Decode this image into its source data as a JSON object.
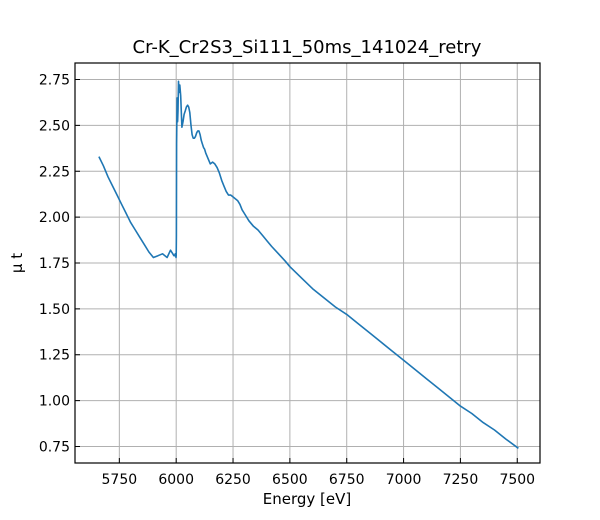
{
  "chart_data": {
    "type": "line",
    "title": "Cr-K_Cr2S3_Si111_50ms_141024_retry",
    "xlabel": "Energy [eV]",
    "ylabel": "μ t",
    "xlim": [
      5555,
      7600
    ],
    "ylim": [
      0.66,
      2.84
    ],
    "xticks": [
      5750,
      6000,
      6250,
      6500,
      6750,
      7000,
      7250,
      7500
    ],
    "yticks": [
      0.75,
      1.0,
      1.25,
      1.5,
      1.75,
      2.0,
      2.25,
      2.5,
      2.75
    ],
    "ytick_labels": [
      "0.75",
      "1.00",
      "1.25",
      "1.50",
      "1.75",
      "2.00",
      "2.25",
      "2.50",
      "2.75"
    ],
    "grid": true,
    "line_color": "#1f77b4",
    "series": [
      {
        "x": [
          5660,
          5680,
          5700,
          5720,
          5740,
          5760,
          5780,
          5800,
          5820,
          5840,
          5860,
          5880,
          5900,
          5920,
          5940,
          5960,
          5975,
          5985,
          5990,
          5993,
          5996,
          5999,
          6000,
          6001,
          6002,
          6004,
          6006,
          6008,
          6010,
          6013,
          6016,
          6020,
          6025,
          6030,
          6035,
          6040,
          6045,
          6050,
          6055,
          6060,
          6065,
          6070,
          6075,
          6080,
          6085,
          6090,
          6095,
          6100,
          6105,
          6110,
          6115,
          6120,
          6125,
          6130,
          6140,
          6150,
          6160,
          6170,
          6180,
          6190,
          6200,
          6210,
          6220,
          6230,
          6240,
          6250,
          6260,
          6270,
          6280,
          6290,
          6300,
          6320,
          6340,
          6360,
          6380,
          6400,
          6420,
          6450,
          6480,
          6500,
          6550,
          6600,
          6650,
          6700,
          6750,
          6800,
          6850,
          6900,
          6950,
          7000,
          7050,
          7100,
          7150,
          7200,
          7250,
          7300,
          7350,
          7400,
          7450,
          7505
        ],
        "y": [
          2.33,
          2.28,
          2.22,
          2.17,
          2.12,
          2.07,
          2.02,
          1.97,
          1.93,
          1.89,
          1.85,
          1.81,
          1.78,
          1.79,
          1.8,
          1.78,
          1.82,
          1.8,
          1.79,
          1.79,
          1.8,
          1.78,
          1.79,
          1.9,
          2.4,
          2.65,
          2.52,
          2.58,
          2.74,
          2.68,
          2.72,
          2.66,
          2.49,
          2.52,
          2.56,
          2.58,
          2.6,
          2.61,
          2.6,
          2.57,
          2.5,
          2.45,
          2.43,
          2.43,
          2.44,
          2.46,
          2.47,
          2.47,
          2.45,
          2.42,
          2.4,
          2.38,
          2.37,
          2.35,
          2.32,
          2.29,
          2.3,
          2.29,
          2.27,
          2.24,
          2.2,
          2.17,
          2.14,
          2.12,
          2.12,
          2.11,
          2.1,
          2.09,
          2.07,
          2.04,
          2.02,
          1.98,
          1.95,
          1.93,
          1.9,
          1.87,
          1.84,
          1.8,
          1.76,
          1.73,
          1.67,
          1.61,
          1.56,
          1.51,
          1.47,
          1.42,
          1.37,
          1.32,
          1.27,
          1.22,
          1.17,
          1.12,
          1.07,
          1.02,
          0.97,
          0.93,
          0.88,
          0.84,
          0.79,
          0.74
        ]
      }
    ]
  }
}
